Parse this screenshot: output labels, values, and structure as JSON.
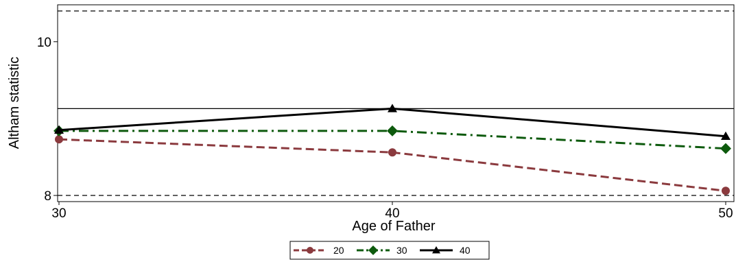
{
  "chart_data": {
    "type": "line",
    "title": "",
    "xlabel": "Age of Father",
    "ylabel": "Altham statistic",
    "x": [
      30,
      40,
      50
    ],
    "xticks": [
      30,
      40,
      50
    ],
    "yticks": [
      8,
      10
    ],
    "xlim": [
      30,
      50
    ],
    "ylim": [
      7.92,
      10.48
    ],
    "grid": false,
    "legend_position": "bottom-center",
    "reference_lines": [
      {
        "y": 10.4,
        "style": "dashed",
        "color": "#000000"
      },
      {
        "y": 9.13,
        "style": "solid",
        "color": "#000000"
      },
      {
        "y": 8.0,
        "style": "dashed",
        "color": "#000000"
      }
    ],
    "series": [
      {
        "name": "20",
        "values": [
          8.73,
          8.56,
          8.06
        ],
        "color": "#8b3a3e",
        "marker": "circle",
        "dash": "dashed"
      },
      {
        "name": "30",
        "values": [
          8.84,
          8.84,
          8.61
        ],
        "color": "#0d5a0d",
        "marker": "diamond",
        "dash": "dashdot"
      },
      {
        "name": "40",
        "values": [
          8.85,
          9.13,
          8.77
        ],
        "color": "#000000",
        "marker": "triangle",
        "dash": "solid"
      }
    ]
  }
}
